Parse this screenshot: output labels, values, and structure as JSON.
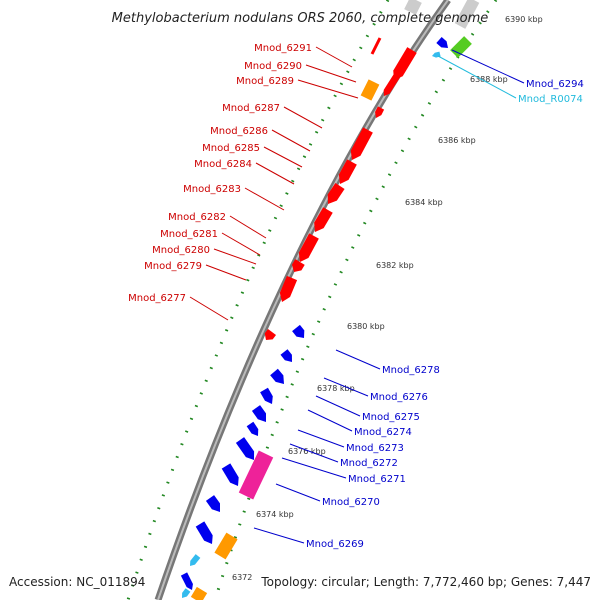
{
  "title": "Methylobacterium nodulans ORS 2060, complete genome",
  "footer": {
    "accession": "Accession: NC_011894",
    "summary": "Topology: circular; Length: 7,772,460 bp; Genes: 7,447"
  },
  "colors": {
    "forward_gene": "#ff0000",
    "reverse_gene": "#0000ee",
    "orange_gene": "#ff9900",
    "pink_gene": "#ee2299",
    "rna": "#33bbee",
    "green_gene": "#55cc22",
    "grey_gene": "#cccccc",
    "backbone": "#777777",
    "tick": "#228822",
    "left_label": "#cc0000",
    "right_label": "#0000cc",
    "rna_label": "#22bbdd"
  },
  "scale_marks": [
    "6390 kbp",
    "6388 kbp",
    "6386 kbp",
    "6384 kbp",
    "6382 kbp",
    "6380 kbp",
    "6378 kbp",
    "6376 kbp",
    "6374 kbp",
    "6372"
  ],
  "left_labels": [
    "Mnod_6291",
    "Mnod_6290",
    "Mnod_6289",
    "Mnod_6287",
    "Mnod_6286",
    "Mnod_6285",
    "Mnod_6284",
    "Mnod_6283",
    "Mnod_6282",
    "Mnod_6281",
    "Mnod_6280",
    "Mnod_6279",
    "Mnod_6277"
  ],
  "right_labels": [
    "Mnod_6294",
    "Mnod_R0074",
    "Mnod_6278",
    "Mnod_6276",
    "Mnod_6275",
    "Mnod_6274",
    "Mnod_6273",
    "Mnod_6272",
    "Mnod_6271",
    "Mnod_6270",
    "Mnod_6269"
  ]
}
